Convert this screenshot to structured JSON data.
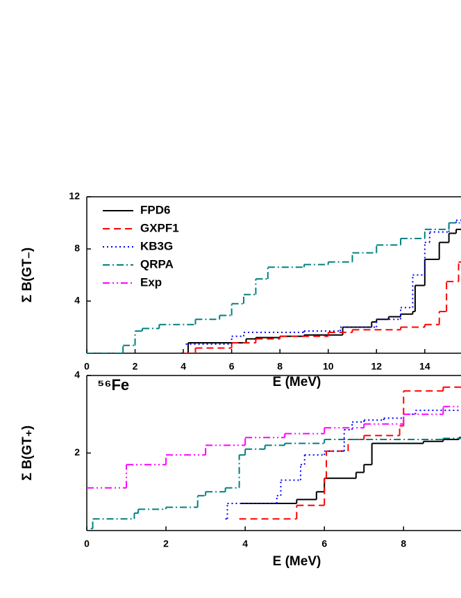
{
  "chart_data": [
    {
      "type": "line",
      "drawstyle": "steps-post",
      "ylabel": "Σ B(GT₋)",
      "xlabel": "E (MeV)",
      "xlim": [
        0,
        15.5
      ],
      "ylim": [
        0,
        12
      ],
      "xticks": [
        0,
        2,
        4,
        6,
        8,
        10,
        12,
        14
      ],
      "yticks": [
        4,
        8,
        12
      ],
      "legend": "upper left",
      "series": [
        {
          "name": "FPD6",
          "color": "#000000",
          "dash": "none",
          "x": [
            3.9,
            4.2,
            6.6,
            7.0,
            8.0,
            9.0,
            10.6,
            11.8,
            12.0,
            12.5,
            13.0,
            13.5,
            13.6,
            14.0,
            14.6,
            15.0,
            15.3
          ],
          "values": [
            0,
            0.8,
            1.1,
            1.2,
            1.3,
            1.4,
            2.0,
            2.4,
            2.6,
            2.8,
            3.0,
            3.2,
            5.2,
            7.2,
            8.5,
            9.2,
            9.5
          ]
        },
        {
          "name": "GXPF1",
          "color": "#ff0000",
          "dash": "10,6",
          "x": [
            4.0,
            4.5,
            6.0,
            7.0,
            8.0,
            10.0,
            11.0,
            13.0,
            14.0,
            14.6,
            14.9,
            15.4
          ],
          "values": [
            0,
            0.4,
            0.8,
            1.1,
            1.3,
            1.6,
            1.8,
            2.0,
            2.2,
            3.2,
            5.5,
            7.0
          ]
        },
        {
          "name": "KB3G",
          "color": "#0000ff",
          "dash": "2,4",
          "x": [
            4.1,
            6.0,
            6.5,
            9.0,
            10.5,
            12.0,
            13.0,
            13.5,
            14.0,
            14.2,
            15.0,
            15.3
          ],
          "values": [
            0.7,
            1.3,
            1.6,
            1.7,
            2.0,
            2.6,
            3.5,
            6.0,
            8.5,
            9.3,
            10.0,
            10.2
          ]
        },
        {
          "name": "QRPA",
          "color": "#008080",
          "dash": "10,4,2,4",
          "x": [
            0,
            1.5,
            2.0,
            2.3,
            3.0,
            4.5,
            5.5,
            6.0,
            6.5,
            7.0,
            7.5,
            9.0,
            10.0,
            11.0,
            12.0,
            13.0,
            14.0,
            15.0
          ],
          "values": [
            0,
            0.6,
            1.7,
            1.9,
            2.2,
            2.6,
            2.9,
            3.8,
            4.5,
            5.7,
            6.6,
            6.8,
            7.0,
            7.7,
            8.3,
            8.8,
            9.5,
            10.0
          ]
        },
        {
          "name": "Exp",
          "color": "#ff00ff",
          "dash": "10,4,2,4,2,4",
          "x": [],
          "values": []
        }
      ]
    },
    {
      "type": "line",
      "drawstyle": "steps-post",
      "ylabel": "Σ B(GT₊)",
      "xlabel": "E (MeV)",
      "annotation": "⁵⁶Fe",
      "xlim": [
        0,
        9.45
      ],
      "ylim": [
        0,
        4
      ],
      "xticks": [
        0,
        2,
        4,
        6,
        8
      ],
      "yticks": [
        2,
        4
      ],
      "series": [
        {
          "name": "FPD6",
          "color": "#000000",
          "dash": "none",
          "x": [
            3.9,
            5.3,
            5.8,
            6.0,
            6.8,
            7.0,
            7.2,
            8.5,
            9.0,
            9.4
          ],
          "values": [
            0.7,
            0.8,
            1.0,
            1.35,
            1.5,
            1.7,
            2.25,
            2.3,
            2.35,
            2.4
          ]
        },
        {
          "name": "GXPF1",
          "color": "#ff0000",
          "dash": "10,6",
          "x": [
            3.85,
            5.3,
            6.0,
            6.05,
            6.6,
            7.0,
            7.9,
            8.0,
            9.0
          ],
          "values": [
            0.3,
            0.65,
            1.35,
            2.05,
            2.35,
            2.45,
            2.7,
            3.6,
            3.7
          ]
        },
        {
          "name": "KB3G",
          "color": "#0000ff",
          "dash": "2,4",
          "x": [
            3.5,
            3.55,
            4.8,
            4.9,
            5.4,
            5.5,
            6.0,
            6.5,
            6.7,
            7.0,
            7.5,
            8.0,
            8.3
          ],
          "values": [
            0.3,
            0.7,
            0.9,
            1.3,
            1.7,
            1.95,
            2.05,
            2.6,
            2.8,
            2.85,
            2.9,
            3.0,
            3.1
          ]
        },
        {
          "name": "QRPA",
          "color": "#008080",
          "dash": "10,4,2,4",
          "x": [
            0.1,
            0.15,
            1.2,
            1.3,
            2.0,
            2.8,
            3.0,
            3.5,
            3.85,
            4.0,
            4.5,
            5.0,
            6.0,
            9.0
          ],
          "values": [
            0.05,
            0.3,
            0.45,
            0.55,
            0.6,
            0.9,
            1.0,
            1.1,
            1.95,
            2.1,
            2.2,
            2.25,
            2.35,
            2.38
          ]
        },
        {
          "name": "Exp",
          "color": "#ff00ff",
          "dash": "10,4,2,4,2,4",
          "x": [
            0,
            1.0,
            2.0,
            3.0,
            4.0,
            5.0,
            6.0,
            7.0,
            8.0,
            9.0
          ],
          "values": [
            1.1,
            1.7,
            1.95,
            2.2,
            2.4,
            2.5,
            2.65,
            2.75,
            3.0,
            3.2
          ]
        }
      ]
    }
  ]
}
